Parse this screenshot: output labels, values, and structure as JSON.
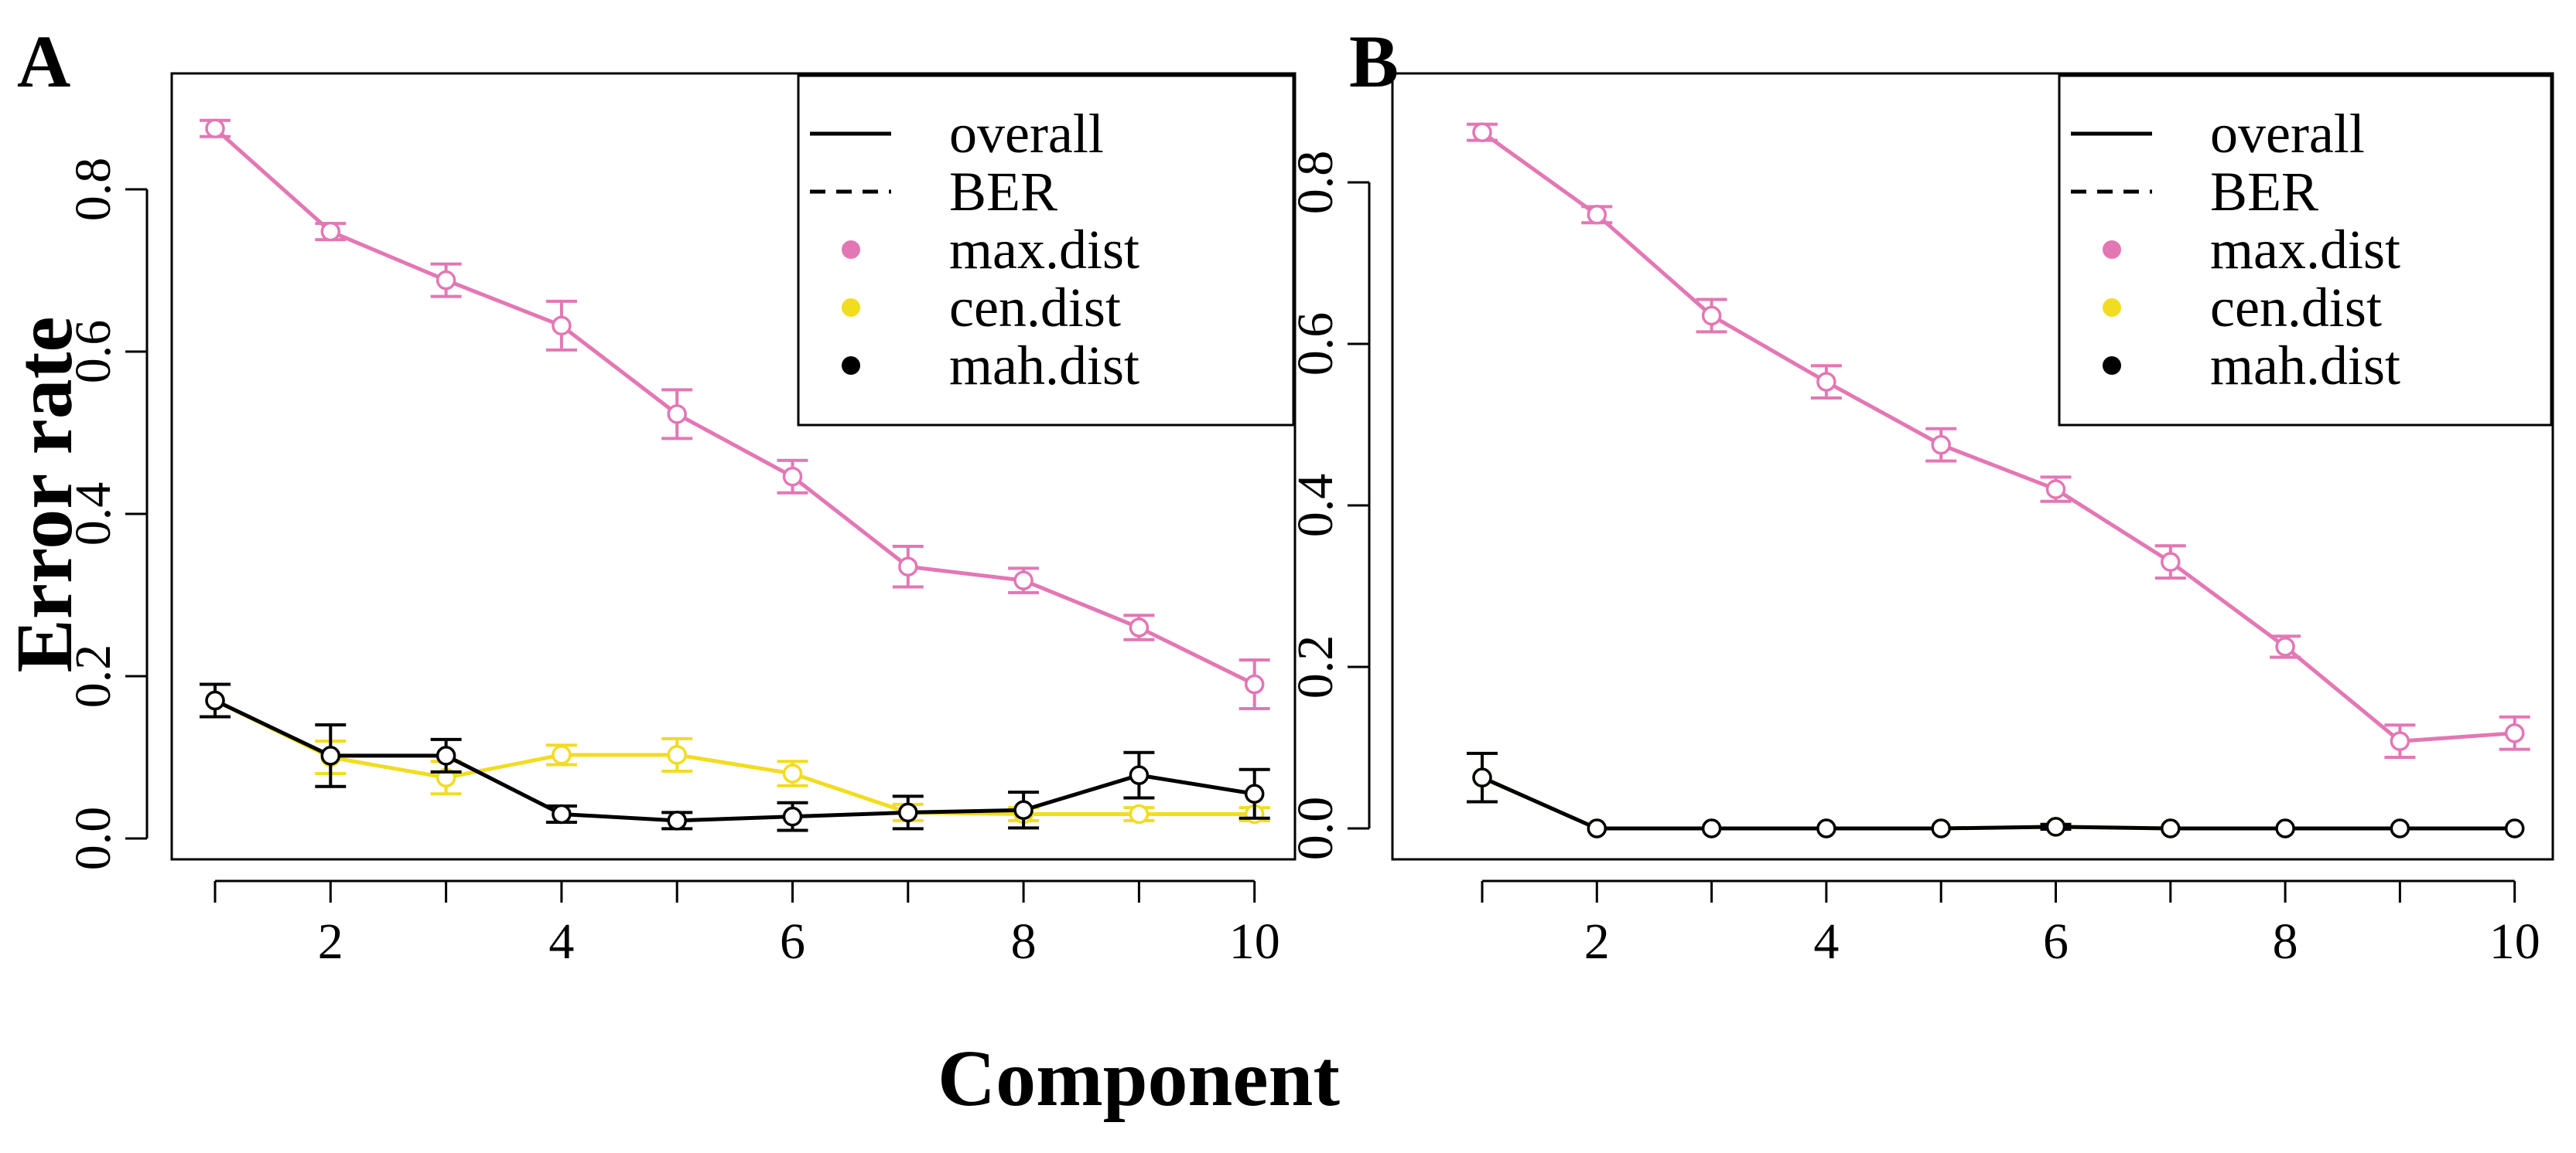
{
  "figure": {
    "ylabel": "Error rate",
    "xlabel": "Component"
  },
  "legend": {
    "items": [
      {
        "label": "overall",
        "kind": "line",
        "dash": false,
        "color": "#000000"
      },
      {
        "label": "BER",
        "kind": "line",
        "dash": true,
        "color": "#000000"
      },
      {
        "label": "max.dist",
        "kind": "dot",
        "color": "#E377B4"
      },
      {
        "label": "cen.dist",
        "kind": "dot",
        "color": "#F2DC1F"
      },
      {
        "label": "mah.dist",
        "kind": "dot",
        "color": "#000000"
      }
    ]
  },
  "chart_data": [
    {
      "panel": "A",
      "type": "line",
      "x": [
        1,
        2,
        3,
        4,
        5,
        6,
        7,
        8,
        9,
        10
      ],
      "xlim": [
        1,
        10
      ],
      "ylim": [
        0,
        0.9
      ],
      "xticks": [
        "2",
        "4",
        "6",
        "8",
        "10"
      ],
      "yticks": [
        "0.0",
        "0.2",
        "0.4",
        "0.6",
        "0.8"
      ],
      "grid": false,
      "legend_position": "top-right",
      "series": [
        {
          "name": "max.dist",
          "color": "#E377B4",
          "values": [
            0.875,
            0.748,
            0.688,
            0.632,
            0.523,
            0.446,
            0.335,
            0.318,
            0.26,
            0.19
          ],
          "err": [
            0.01,
            0.01,
            0.02,
            0.03,
            0.03,
            0.02,
            0.025,
            0.015,
            0.015,
            0.03
          ]
        },
        {
          "name": "cen.dist",
          "color": "#F2DC1F",
          "values": [
            0.17,
            0.1,
            0.075,
            0.103,
            0.103,
            0.08,
            0.032,
            0.03,
            0.03,
            0.03
          ],
          "err": [
            0.02,
            0.02,
            0.02,
            0.012,
            0.02,
            0.015,
            0.01,
            0.008,
            0.008,
            0.008
          ]
        },
        {
          "name": "mah.dist",
          "color": "#000000",
          "values": [
            0.17,
            0.102,
            0.102,
            0.03,
            0.022,
            0.027,
            0.032,
            0.035,
            0.078,
            0.055
          ],
          "err": [
            0.02,
            0.038,
            0.02,
            0.01,
            0.01,
            0.017,
            0.02,
            0.022,
            0.028,
            0.03
          ]
        }
      ]
    },
    {
      "panel": "B",
      "type": "line",
      "x": [
        1,
        2,
        3,
        4,
        5,
        6,
        7,
        8,
        9,
        10
      ],
      "xlim": [
        1,
        10
      ],
      "ylim": [
        0,
        0.9
      ],
      "xticks": [
        "2",
        "4",
        "6",
        "8",
        "10"
      ],
      "yticks": [
        "0.0",
        "0.2",
        "0.4",
        "0.6",
        "0.8"
      ],
      "grid": false,
      "legend_position": "top-right",
      "series": [
        {
          "name": "max.dist",
          "color": "#E377B4",
          "values": [
            0.862,
            0.76,
            0.635,
            0.553,
            0.475,
            0.42,
            0.33,
            0.225,
            0.108,
            0.118
          ],
          "err": [
            0.01,
            0.01,
            0.02,
            0.02,
            0.02,
            0.015,
            0.02,
            0.013,
            0.02,
            0.02
          ]
        },
        {
          "name": "cen.dist",
          "color": "#F2DC1F",
          "values": [
            0.063,
            0.0,
            0.0,
            0.0,
            0.0,
            0.002,
            0.0,
            0.0,
            0.0,
            0.0
          ],
          "err": [
            0.03,
            0,
            0,
            0,
            0,
            0.003,
            0,
            0,
            0,
            0
          ]
        },
        {
          "name": "mah.dist",
          "color": "#000000",
          "values": [
            0.063,
            0.0,
            0.0,
            0.0,
            0.0,
            0.002,
            0.0,
            0.0,
            0.0,
            0.0
          ],
          "err": [
            0.03,
            0,
            0,
            0,
            0,
            0.003,
            0,
            0,
            0,
            0
          ]
        }
      ]
    }
  ]
}
